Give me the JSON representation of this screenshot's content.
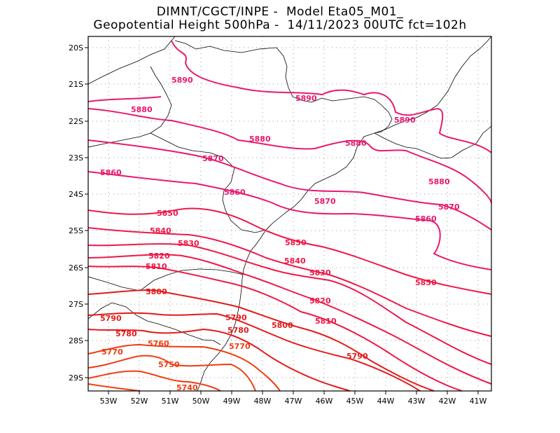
{
  "title": {
    "line1": "DIMNT/CGCT/INPE -  Model Eta05_M01_",
    "line2": "Geopotential Height 500hPa -  14/11/2023 00UTC fct=102h"
  },
  "axes": {
    "lat_labels": [
      "20S",
      "21S",
      "22S",
      "23S",
      "24S",
      "25S",
      "26S",
      "27S",
      "28S",
      "29S"
    ],
    "lon_labels": [
      "53W",
      "52W",
      "51W",
      "50W",
      "49W",
      "48W",
      "47W",
      "46W",
      "45W",
      "44W",
      "43W",
      "42W",
      "41W"
    ],
    "lat_range": [
      -29.4,
      -19.6
    ],
    "lon_range": [
      -53.6,
      -40.6
    ]
  },
  "colors": {
    "high": "#e8196e",
    "mid": "#ee1848",
    "low": "#e41a1a",
    "lowest": "#f03c10",
    "coast": "#000000",
    "grid": "#999999"
  },
  "contours": {
    "label_values": [
      5890,
      5890,
      5890,
      5880,
      5880,
      5880,
      5880,
      5870,
      5870,
      5870,
      5860,
      5860,
      5860,
      5850,
      5850,
      5850,
      5840,
      5840,
      5830,
      5830,
      5820,
      5820,
      5810,
      5810,
      5800,
      5800,
      5790,
      5790,
      5790,
      5780,
      5780,
      5770,
      5770,
      5760,
      5750,
      5740
    ]
  }
}
